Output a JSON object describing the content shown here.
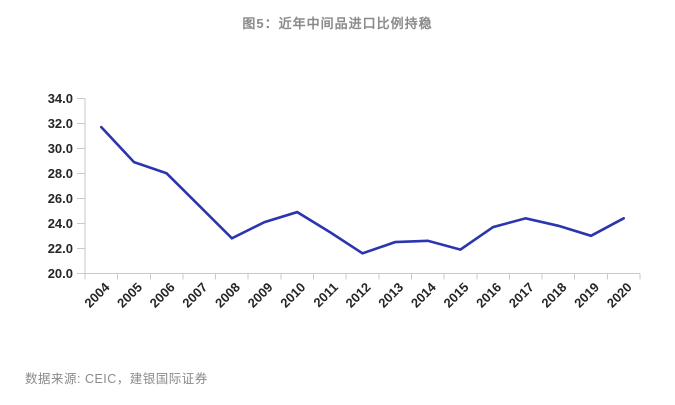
{
  "header": {
    "title": "图5：近年中间品进口比例持稳"
  },
  "footer": {
    "source": "数据来源: CEIC，建银国际证券"
  },
  "chart_data": {
    "type": "line",
    "title": "图5：近年中间品进口比例持稳",
    "categories": [
      "2004",
      "2005",
      "2006",
      "2007",
      "2008",
      "2009",
      "2010",
      "2011",
      "2012",
      "2013",
      "2014",
      "2015",
      "2016",
      "2017",
      "2018",
      "2019",
      "2020"
    ],
    "series": [
      {
        "name": "中间品进口比例",
        "values": [
          31.7,
          28.9,
          28.0,
          25.4,
          22.8,
          24.1,
          24.9,
          23.3,
          21.6,
          22.5,
          22.6,
          21.9,
          23.7,
          24.4,
          23.8,
          23.0,
          24.4
        ],
        "color": "#2B35AD"
      }
    ],
    "xlabel": "",
    "ylabel": "",
    "ylim": [
      20.0,
      34.0
    ],
    "ytick_step": 2.0,
    "ytick_labels": [
      "20.0",
      "22.0",
      "24.0",
      "26.0",
      "28.0",
      "30.0",
      "32.0",
      "34.0"
    ],
    "grid": false,
    "legend_position": "none",
    "x_label_rotation_deg": -45,
    "axis_color": "#c9c9c9",
    "tick_label_color": "#262626",
    "source_note": "数据来源: CEIC，建银国际证券"
  }
}
